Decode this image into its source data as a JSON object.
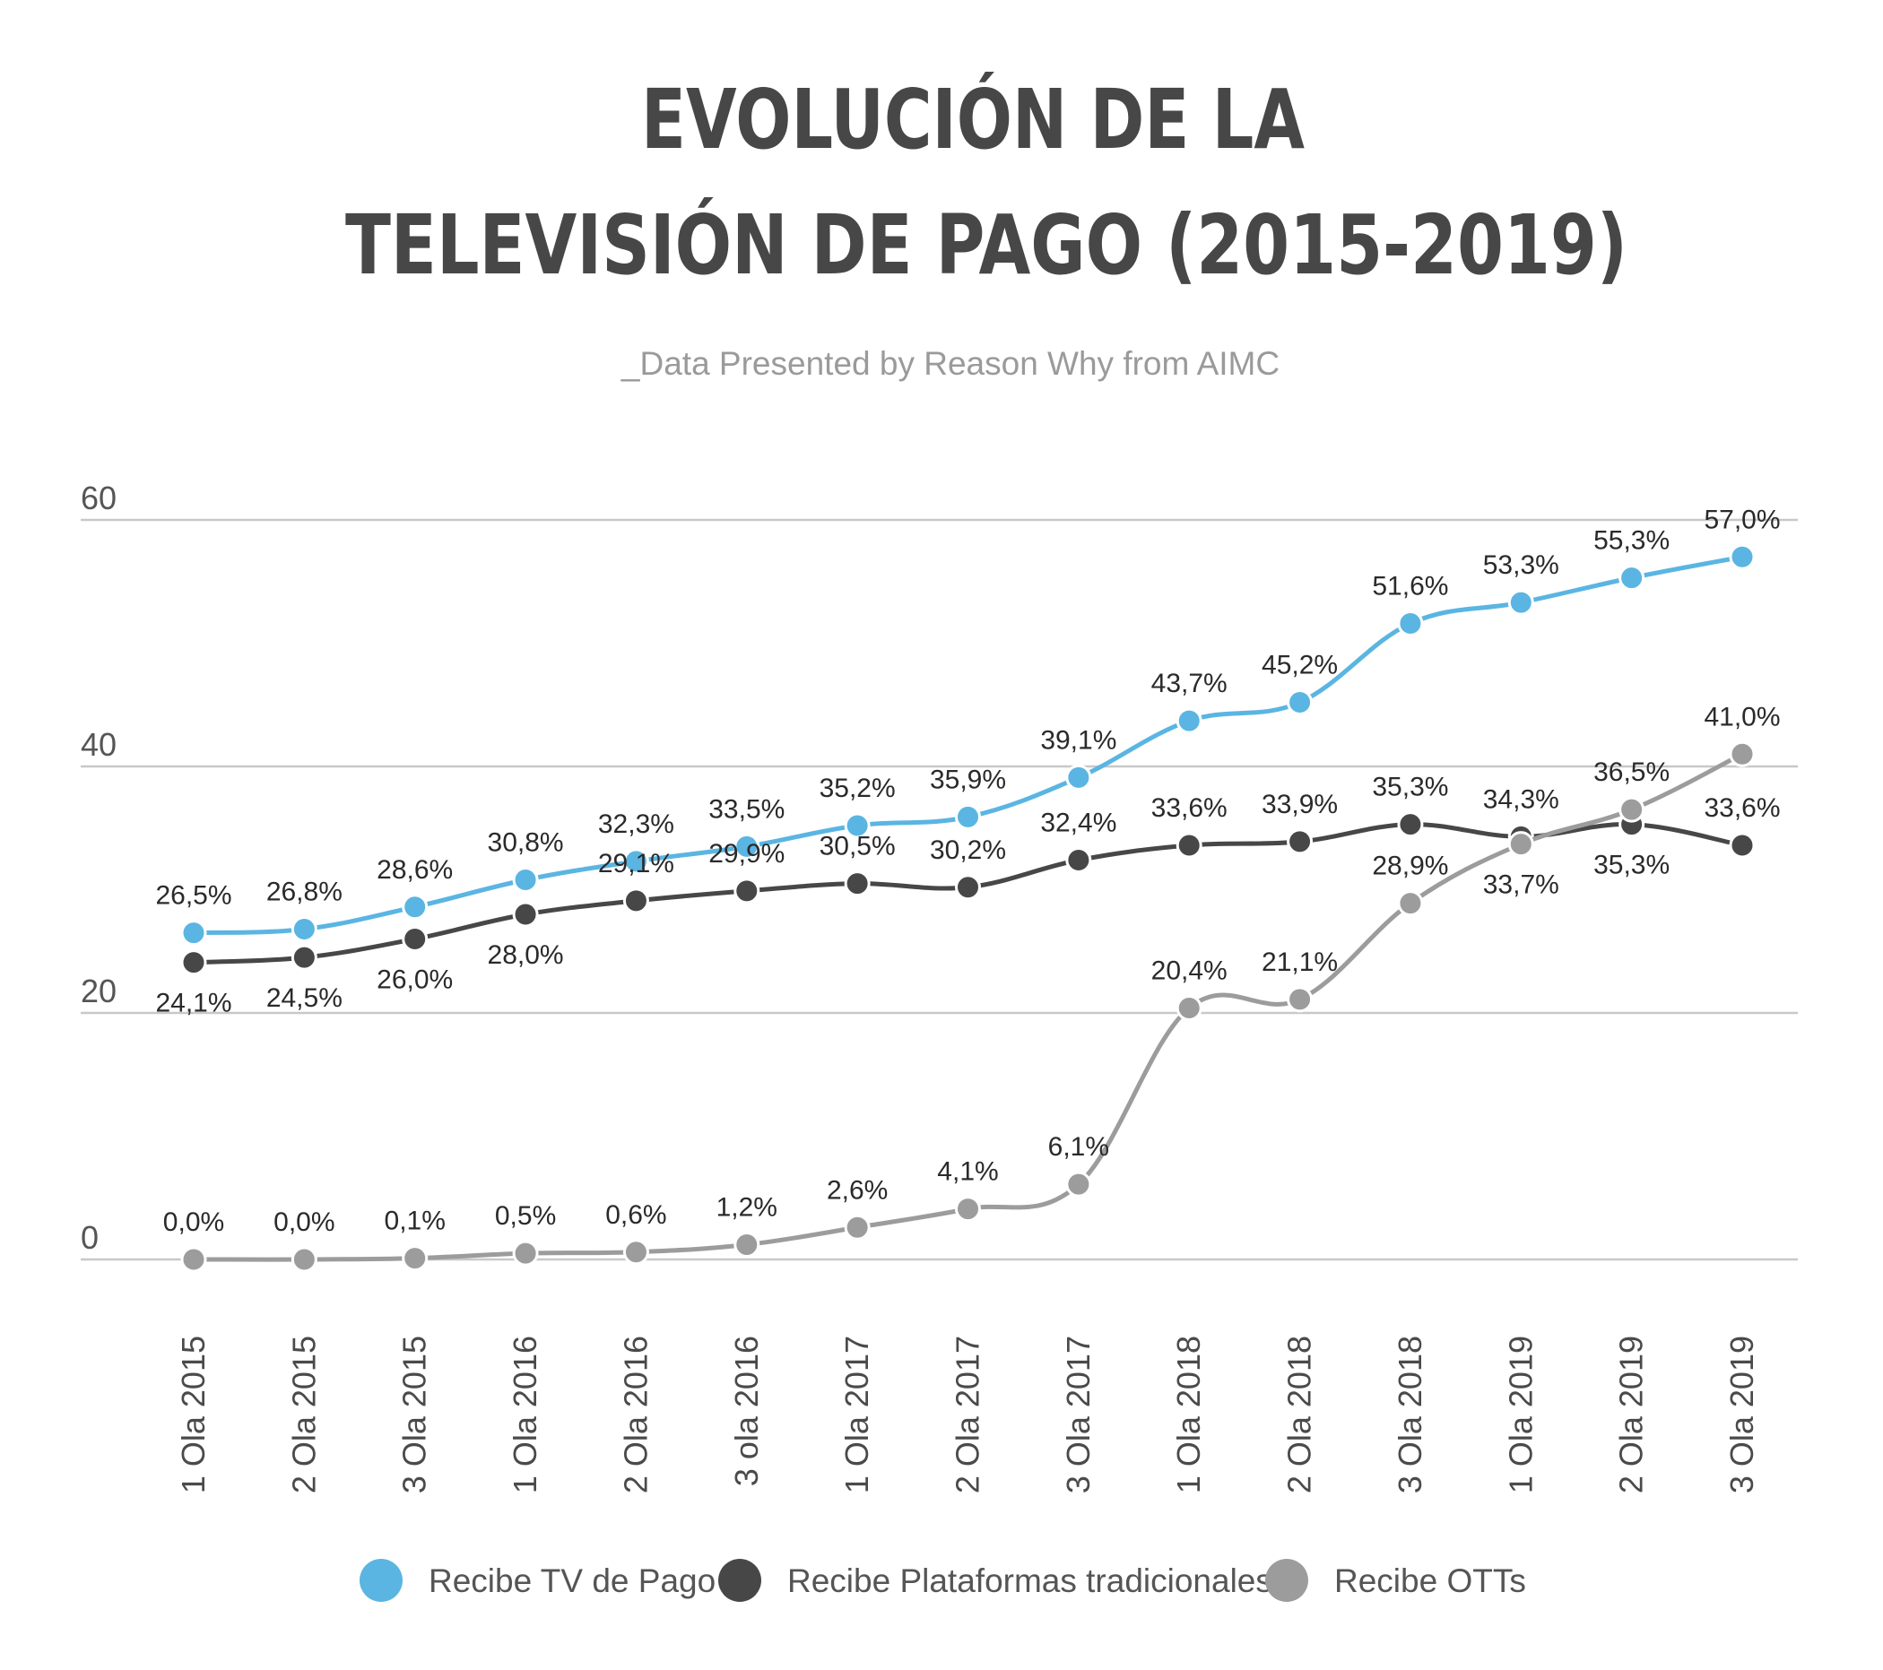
{
  "chart_data": {
    "type": "line",
    "title_lines": [
      "EVOLUCIÓN DE LA",
      "TELEVISIÓN DE PAGO  (2015-2019)"
    ],
    "subtitle": "_Data Presented by Reason Why from AIMC",
    "xlabel": "",
    "ylabel": "",
    "ylim": [
      0,
      60
    ],
    "yticks": [
      0,
      20,
      40,
      60
    ],
    "grid": true,
    "legend_position": "bottom",
    "categories": [
      "1 Ola 2015",
      "2 Ola 2015",
      "3 Ola 2015",
      "1 Ola 2016",
      "2 Ola 2016",
      "3 ola 2016",
      "1 Ola 2017",
      "2 Ola 2017",
      "3 Ola 2017",
      "1 Ola 2018",
      "2 Ola 2018",
      "3 Ola 2018",
      "1 Ola 2019",
      "2 Ola 2019",
      "3 Ola 2019"
    ],
    "series": [
      {
        "name": "Recibe TV de Pago",
        "color": "#5ab5e2",
        "values": [
          26.5,
          26.8,
          28.6,
          30.8,
          32.3,
          33.5,
          35.2,
          35.9,
          39.1,
          43.7,
          45.2,
          51.6,
          53.3,
          55.3,
          57.0
        ],
        "labels": [
          "26,5%",
          "26,8%",
          "28,6%",
          "30,8%",
          "32,3%",
          "33,5%",
          "35,2%",
          "35,9%",
          "39,1%",
          "43,7%",
          "45,2%",
          "51,6%",
          "53,3%",
          "55,3%",
          "57,0%"
        ]
      },
      {
        "name": "Recibe Plataformas tradicionales",
        "color": "#474747",
        "values": [
          24.1,
          24.5,
          26.0,
          28.0,
          29.1,
          29.9,
          30.5,
          30.2,
          32.4,
          33.6,
          33.9,
          35.3,
          34.3,
          35.3,
          33.6
        ],
        "labels": [
          "24,1%",
          "24,5%",
          "26,0%",
          "28,0%",
          "29,1%",
          "29,9%",
          "30,5%",
          "30,2%",
          "32,4%",
          "33,6%",
          "33,9%",
          "35,3%",
          "34,3%",
          "35,3%",
          "33,6%"
        ]
      },
      {
        "name": "Recibe OTTs",
        "color": "#9c9c9c",
        "values": [
          0.0,
          0.0,
          0.1,
          0.5,
          0.6,
          1.2,
          2.6,
          4.1,
          6.1,
          20.4,
          21.1,
          28.9,
          33.7,
          36.5,
          41.0
        ],
        "labels": [
          "0,0%",
          "0,0%",
          "0,1%",
          "0,5%",
          "0,6%",
          "1,2%",
          "2,6%",
          "4,1%",
          "6,1%",
          "20,4%",
          "21,1%",
          "28,9%",
          "33,7%",
          "36,5%",
          "41,0%"
        ]
      }
    ]
  }
}
